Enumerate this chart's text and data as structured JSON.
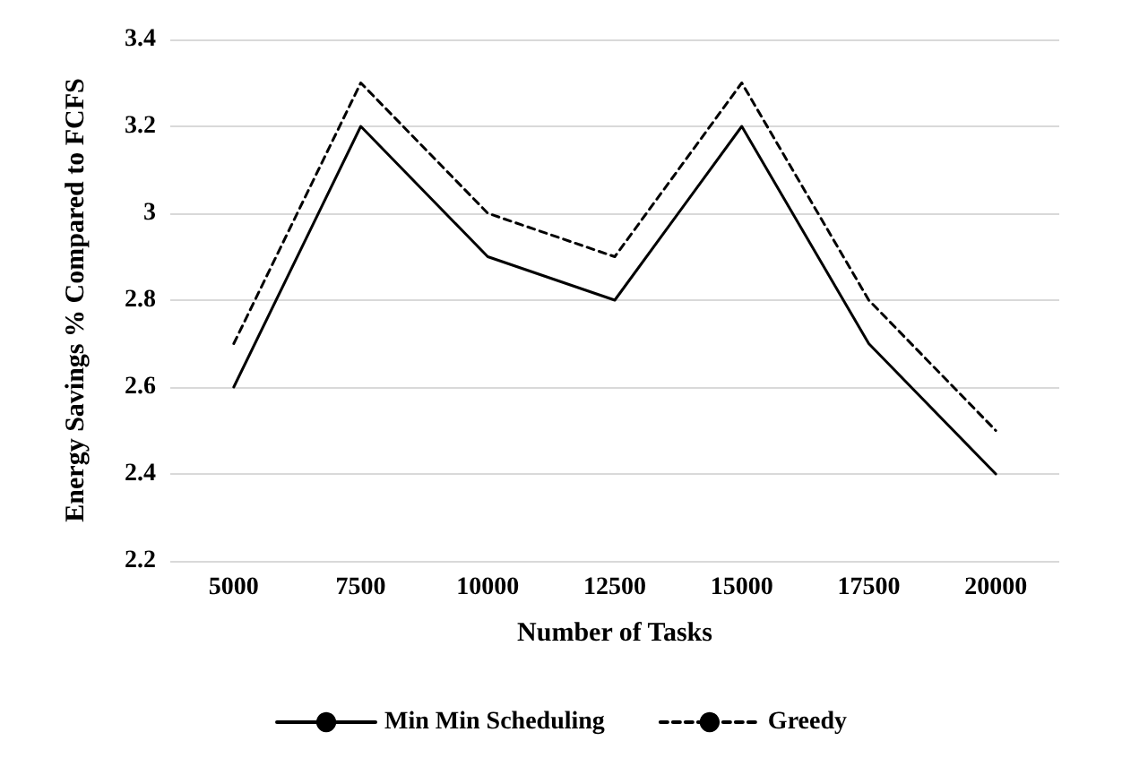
{
  "chart_data": {
    "type": "line",
    "xlabel": "Number of Tasks",
    "ylabel": "Energy Savings % Compared to FCFS",
    "categories": [
      "5000",
      "7500",
      "10000",
      "12500",
      "15000",
      "17500",
      "20000"
    ],
    "series": [
      {
        "name": "Min Min Scheduling",
        "color": "#000000",
        "line_style": "solid",
        "values": [
          2.6,
          3.2,
          2.9,
          2.8,
          3.2,
          2.7,
          2.4
        ]
      },
      {
        "name": "Greedy",
        "color": "#000000",
        "line_style": "dashed",
        "values": [
          2.7,
          3.3,
          3.0,
          2.9,
          3.3,
          2.8,
          2.5
        ]
      }
    ],
    "ylim": [
      2.2,
      3.4
    ],
    "yticks": [
      2.2,
      2.4,
      2.6,
      2.8,
      3,
      3.2,
      3.4
    ],
    "grid": "y",
    "legend": "bottom",
    "marker": "none"
  }
}
